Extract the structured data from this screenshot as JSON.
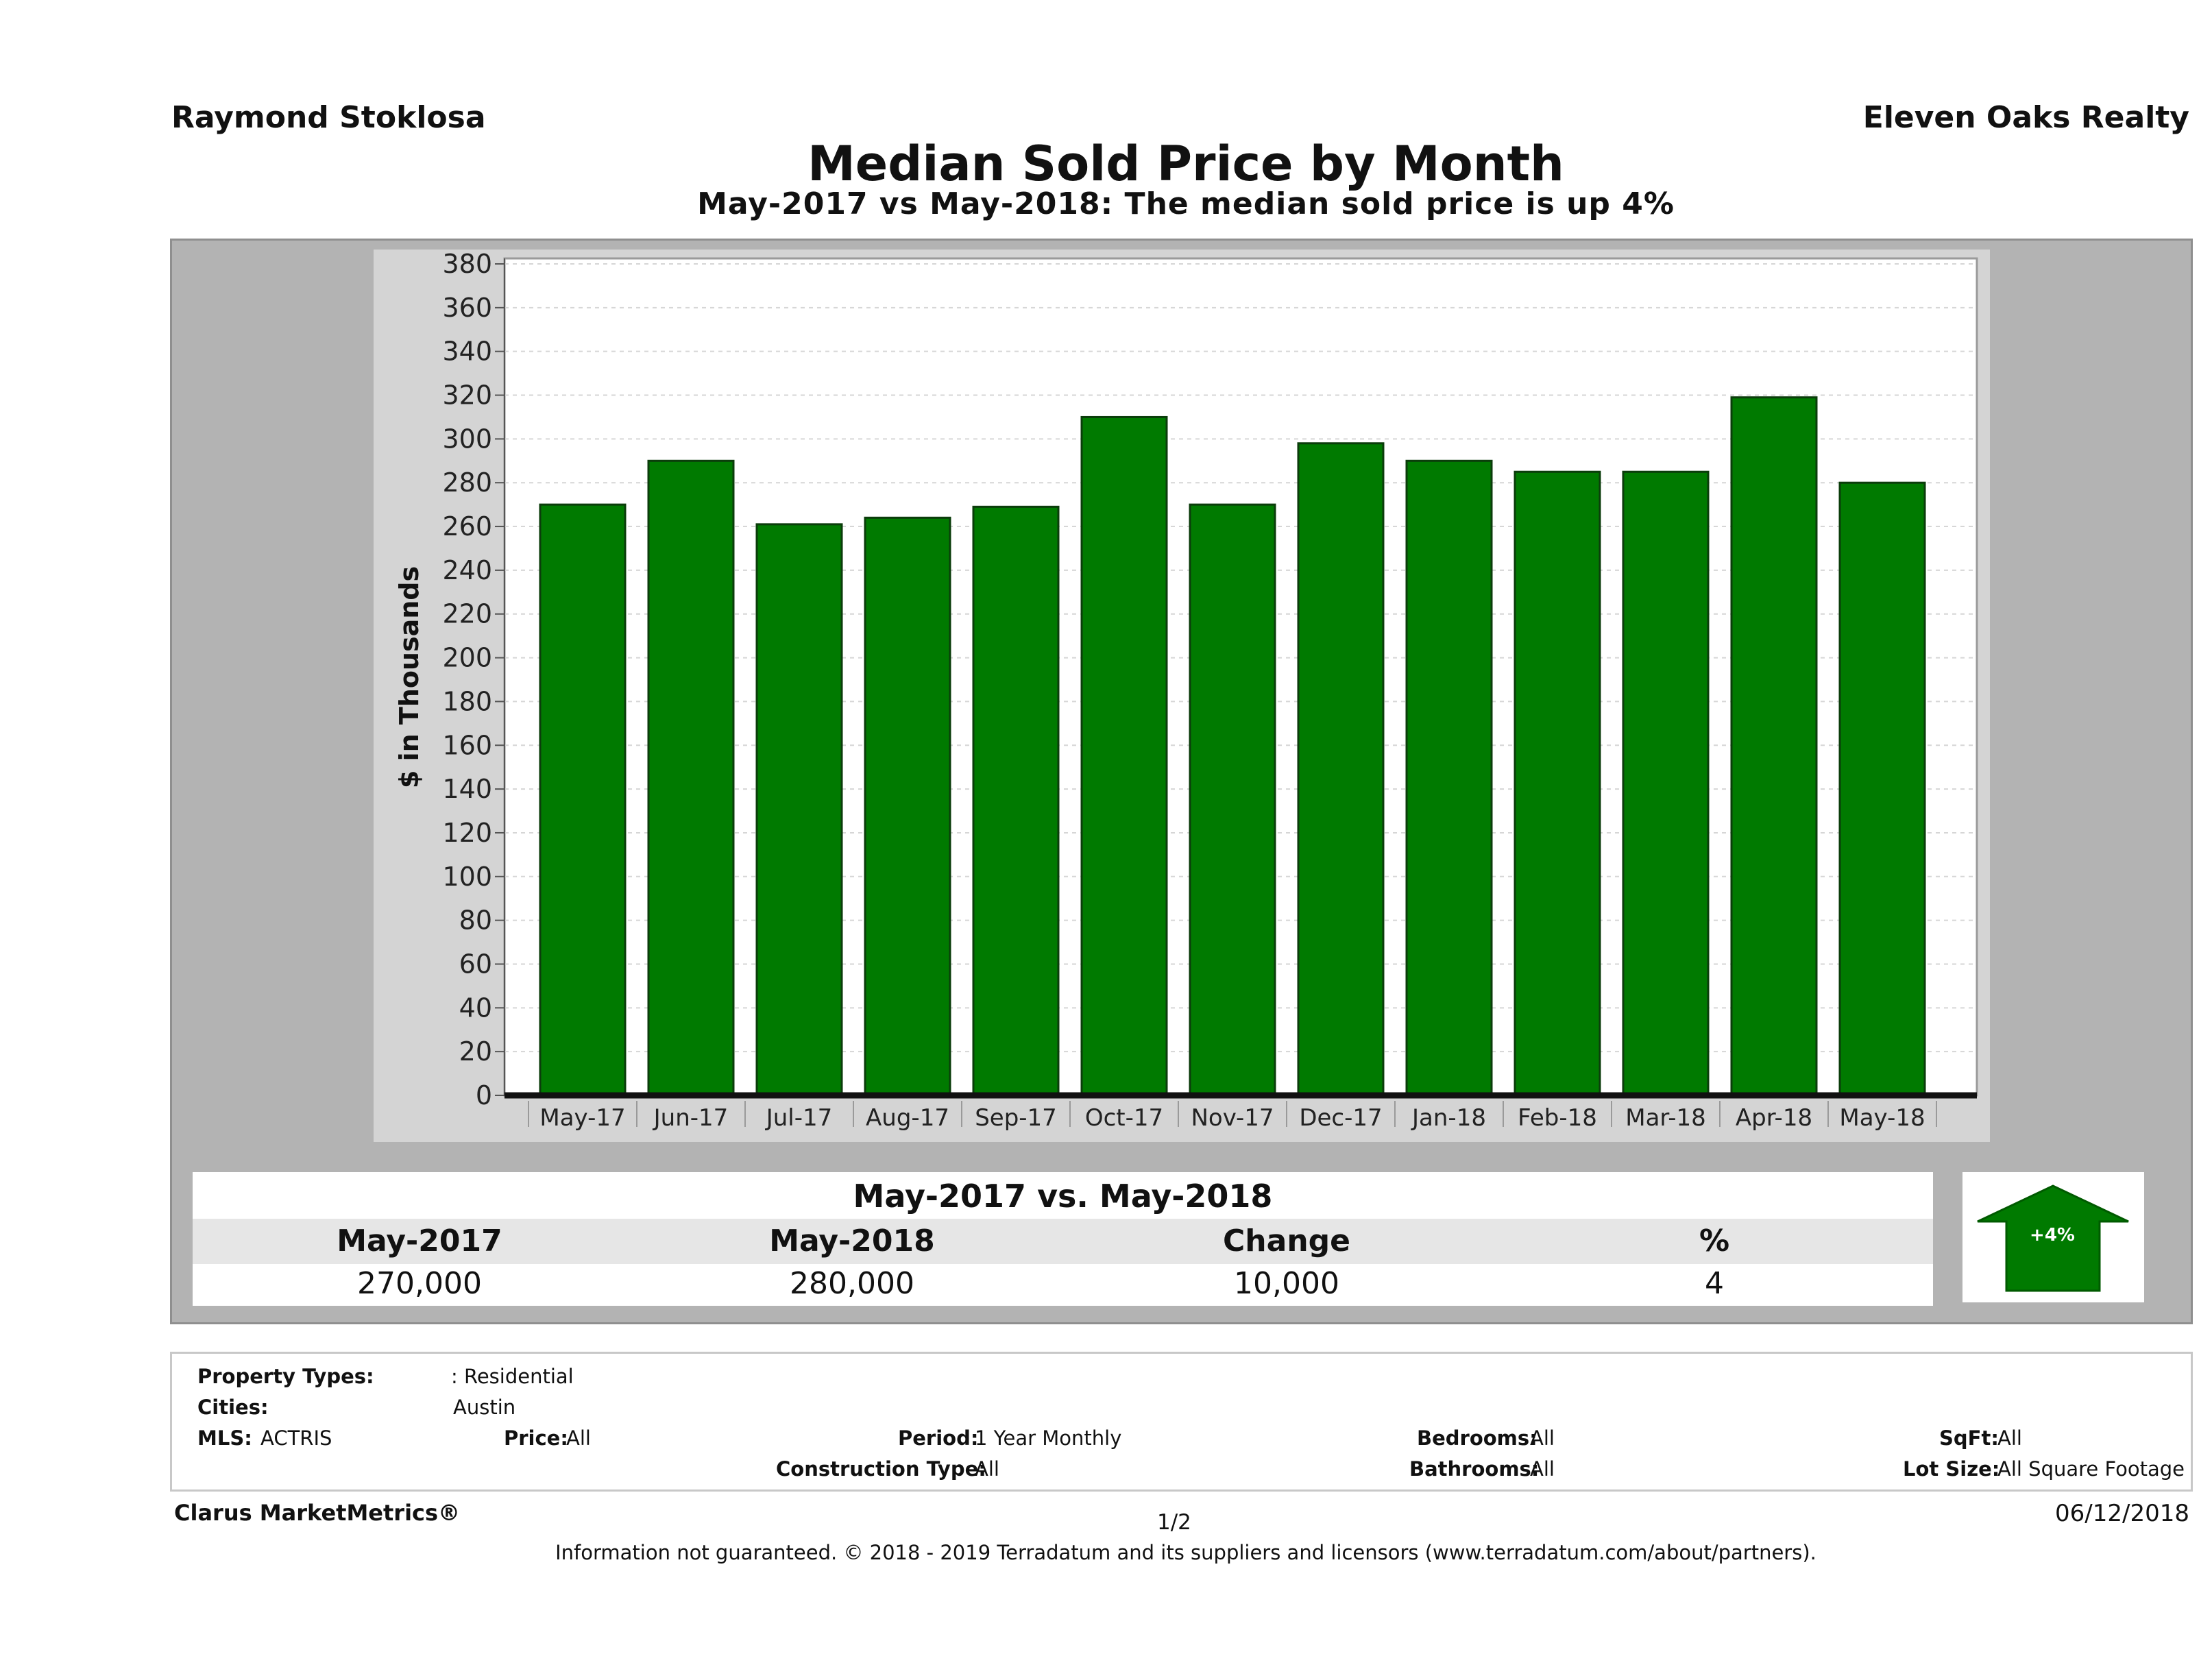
{
  "header": {
    "agent": "Raymond Stoklosa",
    "brokerage": "Eleven Oaks Realty",
    "title": "Median Sold Price by Month",
    "subtitle": "May-2017 vs May-2018: The median sold price is up 4%"
  },
  "chart_data": {
    "type": "bar",
    "categories": [
      "May-17",
      "Jun-17",
      "Jul-17",
      "Aug-17",
      "Sep-17",
      "Oct-17",
      "Nov-17",
      "Dec-17",
      "Jan-18",
      "Feb-18",
      "Mar-18",
      "Apr-18",
      "May-18"
    ],
    "values": [
      270,
      290,
      261,
      264,
      269,
      310,
      270,
      298,
      290,
      285,
      285,
      319,
      280
    ],
    "ylabel": "$ in Thousands",
    "ylim": [
      0,
      380
    ],
    "yticks": [
      0,
      20,
      40,
      60,
      80,
      100,
      120,
      140,
      160,
      180,
      200,
      220,
      240,
      260,
      280,
      300,
      320,
      340,
      360,
      380
    ],
    "bar_color": "#007a00",
    "grid": true
  },
  "summary": {
    "title": "May-2017 vs. May-2018",
    "headers": [
      "May-2017",
      "May-2018",
      "Change",
      "%"
    ],
    "values": [
      "270,000",
      "280,000",
      "10,000",
      "4"
    ],
    "badge": "+4%",
    "badge_color": "#007a00"
  },
  "filters": {
    "property_types_label": "Property Types:",
    "property_types_value": ": Residential",
    "cities_label": "Cities:",
    "cities_value": "Austin",
    "mls_label": "MLS:",
    "mls_value": "ACTRIS",
    "price_label": "Price:",
    "price_value": "All",
    "period_label": "Period:",
    "period_value": "1 Year Monthly",
    "construction_label": "Construction Type:",
    "construction_value": "All",
    "bedrooms_label": "Bedrooms:",
    "bedrooms_value": "All",
    "bathrooms_label": "Bathrooms:",
    "bathrooms_value": "All",
    "sqft_label": "SqFt:",
    "sqft_value": "All",
    "lotsize_label": "Lot Size:",
    "lotsize_value": "All Square Footage"
  },
  "footer": {
    "product": "Clarus MarketMetrics®",
    "page": "1/2",
    "date": "06/12/2018",
    "disclaimer": "Information not guaranteed. © 2018 - 2019 Terradatum and its suppliers and licensors (www.terradatum.com/about/partners)."
  }
}
